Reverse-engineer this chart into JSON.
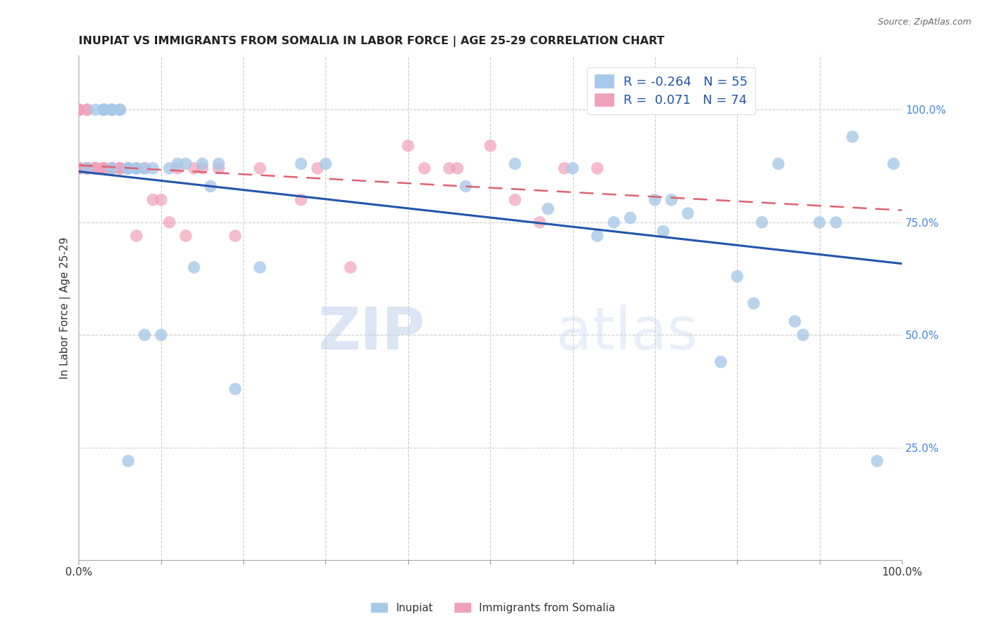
{
  "title": "INUPIAT VS IMMIGRANTS FROM SOMALIA IN LABOR FORCE | AGE 25-29 CORRELATION CHART",
  "source": "Source: ZipAtlas.com",
  "ylabel": "In Labor Force | Age 25-29",
  "watermark_zip": "ZIP",
  "watermark_atlas": "atlas",
  "y_tick_vals_right": [
    0.25,
    0.5,
    0.75,
    1.0
  ],
  "y_tick_labels_right": [
    "25.0%",
    "50.0%",
    "75.0%",
    "100.0%"
  ],
  "legend_blue_r": "-0.264",
  "legend_blue_n": "55",
  "legend_pink_r": "0.071",
  "legend_pink_n": "74",
  "blue_color": "#A8C8E8",
  "pink_color": "#F0A0B8",
  "blue_line_color": "#2255AA",
  "pink_line_color": "#E06070",
  "inupiat_x": [
    0.01,
    0.02,
    0.03,
    0.03,
    0.03,
    0.04,
    0.04,
    0.04,
    0.04,
    0.05,
    0.05,
    0.06,
    0.06,
    0.06,
    0.06,
    0.07,
    0.07,
    0.08,
    0.08,
    0.09,
    0.1,
    0.11,
    0.12,
    0.13,
    0.14,
    0.15,
    0.16,
    0.17,
    0.19,
    0.22,
    0.27,
    0.3,
    0.47,
    0.53,
    0.57,
    0.6,
    0.63,
    0.65,
    0.67,
    0.7,
    0.71,
    0.72,
    0.74,
    0.78,
    0.8,
    0.82,
    0.83,
    0.85,
    0.87,
    0.88,
    0.9,
    0.92,
    0.94,
    0.97,
    0.99
  ],
  "inupiat_y": [
    0.87,
    1.0,
    1.0,
    1.0,
    1.0,
    1.0,
    1.0,
    1.0,
    0.87,
    1.0,
    1.0,
    0.22,
    0.87,
    0.87,
    0.87,
    0.87,
    0.87,
    0.87,
    0.5,
    0.87,
    0.5,
    0.87,
    0.88,
    0.88,
    0.65,
    0.88,
    0.83,
    0.88,
    0.38,
    0.65,
    0.88,
    0.88,
    0.83,
    0.88,
    0.78,
    0.87,
    0.72,
    0.75,
    0.76,
    0.8,
    0.73,
    0.8,
    0.77,
    0.44,
    0.63,
    0.57,
    0.75,
    0.88,
    0.53,
    0.5,
    0.75,
    0.75,
    0.94,
    0.22,
    0.88
  ],
  "somalia_x": [
    0.0,
    0.0,
    0.0,
    0.0,
    0.0,
    0.0,
    0.0,
    0.0,
    0.0,
    0.0,
    0.0,
    0.01,
    0.01,
    0.01,
    0.01,
    0.01,
    0.01,
    0.01,
    0.01,
    0.01,
    0.01,
    0.01,
    0.01,
    0.01,
    0.01,
    0.02,
    0.02,
    0.02,
    0.02,
    0.02,
    0.02,
    0.02,
    0.03,
    0.03,
    0.03,
    0.03,
    0.03,
    0.03,
    0.04,
    0.04,
    0.04,
    0.04,
    0.04,
    0.05,
    0.05,
    0.05,
    0.06,
    0.06,
    0.06,
    0.07,
    0.07,
    0.08,
    0.09,
    0.1,
    0.11,
    0.12,
    0.13,
    0.14,
    0.15,
    0.17,
    0.19,
    0.22,
    0.27,
    0.29,
    0.33,
    0.4,
    0.42,
    0.45,
    0.46,
    0.5,
    0.53,
    0.56,
    0.59,
    0.63
  ],
  "somalia_y": [
    0.87,
    0.87,
    0.87,
    0.87,
    0.87,
    1.0,
    1.0,
    1.0,
    1.0,
    0.87,
    0.87,
    0.87,
    0.87,
    0.87,
    0.87,
    1.0,
    1.0,
    0.87,
    0.87,
    0.87,
    0.87,
    0.87,
    0.87,
    0.87,
    0.87,
    0.87,
    0.87,
    0.87,
    0.87,
    0.87,
    0.87,
    0.87,
    0.87,
    0.87,
    0.87,
    0.87,
    0.87,
    0.87,
    0.87,
    0.87,
    0.87,
    0.87,
    0.87,
    0.87,
    0.87,
    0.87,
    0.87,
    0.87,
    0.87,
    0.72,
    0.87,
    0.87,
    0.8,
    0.8,
    0.75,
    0.87,
    0.72,
    0.87,
    0.87,
    0.87,
    0.72,
    0.87,
    0.8,
    0.87,
    0.65,
    0.92,
    0.87,
    0.87,
    0.87,
    0.92,
    0.8,
    0.75,
    0.87,
    0.87
  ]
}
